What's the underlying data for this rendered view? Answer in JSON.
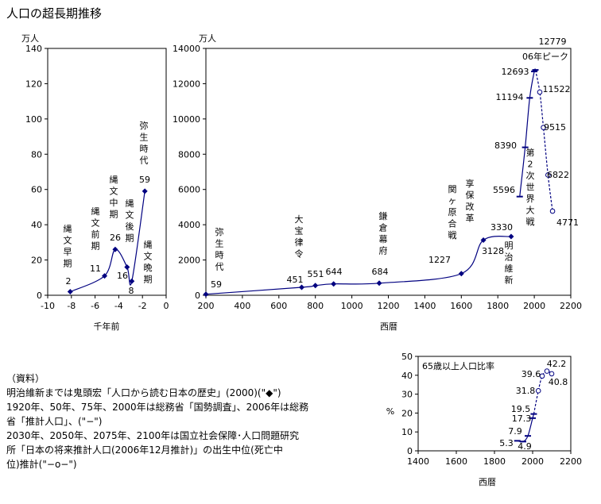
{
  "title": "人口の超長期推移",
  "notes": {
    "header": "（資料）",
    "lines": [
      "明治維新までは鬼頭宏「人口から読む日本の歴史」(2000)(\"◆\")",
      "1920年、50年、75年、2000年は総務省「国勢調査」、2006年は総務",
      "省「推計人口」、(\"−\")",
      "2030年、2050年、2075年、2100年は国立社会保障･人口問題研究",
      "所「日本の将来推計人口(2006年12月推計)」の出生中位(死亡中",
      "位)推計(\"−o−\")"
    ]
  },
  "chart_data": [
    {
      "type": "line",
      "ylabel": "万人",
      "xlabel": "千年前",
      "xlim": [
        -10,
        0
      ],
      "ylim": [
        0,
        140
      ],
      "xticks": [
        "-10",
        "-8",
        "-6",
        "-4",
        "-2",
        "0"
      ],
      "yticks": [
        "0",
        "20",
        "40",
        "60",
        "80",
        "100",
        "120",
        "140"
      ],
      "series": [
        {
          "x": [
            -8.1,
            -5.2,
            -4.3,
            -3.3,
            -2.9,
            -1.8
          ],
          "y": [
            2,
            11,
            26,
            16,
            8,
            59
          ]
        }
      ],
      "annotations": [
        "縄文早期",
        "2",
        "縄文前期",
        "11",
        "縄文中期",
        "26",
        "縄文後期",
        "16",
        "8",
        "縄文晩期",
        "弥生時代",
        "59"
      ]
    },
    {
      "type": "line",
      "ylabel": "万人",
      "xlabel": "西暦",
      "xlim": [
        200,
        2200
      ],
      "ylim": [
        0,
        14000
      ],
      "xticks": [
        "200",
        "400",
        "600",
        "800",
        "1000",
        "1200",
        "1400",
        "1600",
        "1800",
        "2000",
        "2200"
      ],
      "yticks": [
        "0",
        "2000",
        "4000",
        "6000",
        "8000",
        "10000",
        "12000",
        "14000"
      ],
      "series": [
        {
          "x": [
            200,
            725,
            800,
            900,
            1150,
            1600,
            1721,
            1873
          ],
          "y": [
            59,
            451,
            551,
            644,
            684,
            1227,
            3128,
            3330
          ]
        },
        {
          "x": [
            1920,
            1950,
            1975,
            2000,
            2006
          ],
          "y": [
            5596,
            8390,
            11194,
            12693,
            12779
          ]
        },
        {
          "x": [
            2006,
            2030,
            2050,
            2075,
            2100
          ],
          "y": [
            12779,
            11522,
            9515,
            6822,
            4771
          ]
        }
      ],
      "annotations": [
        "弥生時代",
        "59",
        "大宝律令",
        "451",
        "551",
        "644",
        "鎌倉幕府",
        "684",
        "関ヶ原合戦",
        "1227",
        "享保改革",
        "3128",
        "3330",
        "明治維新",
        "5596",
        "8390",
        "11194",
        "12693",
        "12779",
        "06年ピーク",
        "第2次世界大戦",
        "11522",
        "9515",
        "6822",
        "4771"
      ]
    },
    {
      "type": "line",
      "title": "65歳以上人口比率",
      "ylabel": "%",
      "xlabel": "西暦",
      "xlim": [
        1400,
        2200
      ],
      "ylim": [
        0,
        50
      ],
      "xticks": [
        "1400",
        "1600",
        "1800",
        "2000",
        "2200"
      ],
      "yticks": [
        "0",
        "10",
        "20",
        "30",
        "40",
        "50"
      ],
      "series": [
        {
          "x": [
            1920,
            1950,
            1975,
            2000,
            2006
          ],
          "y": [
            5.3,
            4.9,
            7.9,
            17.3,
            19.5
          ]
        },
        {
          "x": [
            2006,
            2030,
            2050,
            2075,
            2100
          ],
          "y": [
            19.5,
            31.8,
            39.6,
            42.2,
            40.8
          ]
        }
      ],
      "annotations": [
        "5.3",
        "4.9",
        "7.9",
        "17.3",
        "19.5",
        "31.8",
        "39.6",
        "42.2",
        "40.8"
      ]
    }
  ]
}
